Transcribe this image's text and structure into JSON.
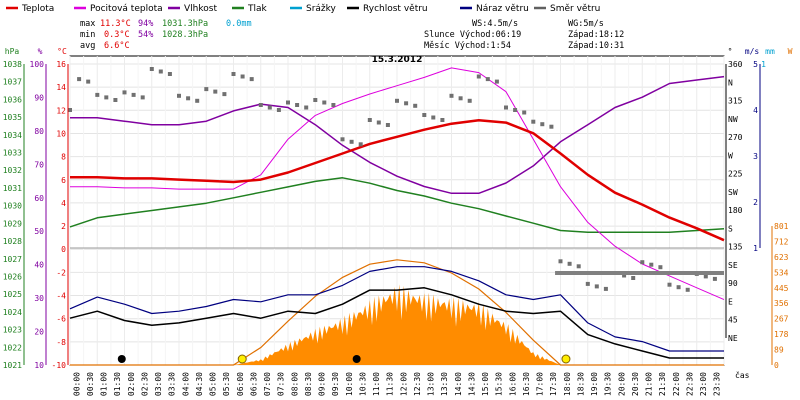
{
  "chart_data": {
    "type": "line",
    "title": "15.3.2012",
    "legend": [
      {
        "name": "Teplota",
        "color": "#e00000"
      },
      {
        "name": "Pocitová teplota",
        "color": "#dd00dd"
      },
      {
        "name": "Vlhkost",
        "color": "#8000a0"
      },
      {
        "name": "Tlak",
        "color": "#208020"
      },
      {
        "name": "Srážky",
        "color": "#00a0d0"
      },
      {
        "name": "Rychlost větru",
        "color": "#000000"
      },
      {
        "name": "Náraz větru",
        "color": "#000080"
      },
      {
        "name": "Směr větru",
        "color": "#606060"
      }
    ],
    "stats": {
      "max_label": "max",
      "min_label": "min",
      "avg_label": "avg",
      "max_temp": "11.3°C",
      "max_hum": "94%",
      "max_press": "1031.3hPa",
      "max_rain": "0.0mm",
      "min_temp": "0.3°C",
      "min_hum": "54%",
      "min_press": "1028.3hPa",
      "avg_temp": "6.6°C",
      "ws": "WS:4.5m/s",
      "wg": "WG:5m/s",
      "sun": "Slunce Východ:06:19",
      "sun_set": "Západ:18:12",
      "moon": "Měsíc  Východ:1:54",
      "moon_set": "Západ:10:31"
    },
    "axes": {
      "hpa": {
        "label": "hPa",
        "ticks": [
          "1038",
          "1037",
          "1036",
          "1035",
          "1034",
          "1033",
          "1032",
          "1031",
          "1030",
          "1029",
          "1028",
          "1027",
          "1026",
          "1025",
          "1024",
          "1023",
          "1022",
          "1021"
        ]
      },
      "pct": {
        "label": "%",
        "ticks": [
          "100",
          "",
          "90",
          "",
          "80",
          "",
          "70",
          "",
          "60",
          "",
          "50",
          "",
          "40",
          "",
          "30",
          "",
          "20",
          "",
          "10"
        ]
      },
      "temp": {
        "label": "°C",
        "ticks": [
          "16",
          "14",
          "12",
          "10",
          "8",
          "6",
          "4",
          "2",
          "0",
          "-2",
          "-4",
          "-6",
          "-8",
          "-10"
        ]
      },
      "dir": {
        "label": "°",
        "ticks": [
          "360",
          "N",
          "315",
          "NW",
          "270",
          "W",
          "225",
          "SW",
          "180",
          "S",
          "135",
          "SE",
          "90",
          "E",
          "45",
          "NE"
        ]
      },
      "ms": {
        "label": "m/s",
        "ticks": [
          "5",
          "4",
          "3",
          "2",
          "1"
        ]
      },
      "mm": {
        "label": "mm",
        "ticks": [
          "1"
        ]
      },
      "w": {
        "label": "W",
        "ticks": [
          "801",
          "712",
          "623",
          "534",
          "445",
          "356",
          "267",
          "178",
          "89",
          "0"
        ]
      },
      "x_label": "čas",
      "x_ticks": [
        "00:00",
        "00:30",
        "01:00",
        "01:30",
        "02:00",
        "02:30",
        "03:00",
        "03:30",
        "04:00",
        "04:30",
        "05:00",
        "05:30",
        "06:00",
        "06:30",
        "07:00",
        "07:30",
        "08:00",
        "08:30",
        "09:00",
        "09:30",
        "10:00",
        "10:30",
        "11:00",
        "11:30",
        "12:00",
        "12:30",
        "13:00",
        "13:30",
        "14:00",
        "14:30",
        "15:00",
        "15:30",
        "16:00",
        "16:30",
        "17:00",
        "17:30",
        "18:00",
        "18:30",
        "19:00",
        "19:30",
        "20:00",
        "20:30",
        "21:00",
        "21:30",
        "22:00",
        "22:30",
        "23:00",
        "23:30"
      ]
    },
    "series_hourly": {
      "hours": [
        0,
        1,
        2,
        3,
        4,
        5,
        6,
        7,
        8,
        9,
        10,
        11,
        12,
        13,
        14,
        15,
        16,
        17,
        18,
        19,
        20,
        21,
        22,
        23,
        24
      ],
      "temperature_c": [
        5.8,
        5.8,
        5.7,
        5.7,
        5.6,
        5.5,
        5.4,
        5.6,
        6.2,
        7.0,
        7.8,
        8.6,
        9.2,
        9.8,
        10.3,
        10.6,
        10.4,
        9.5,
        7.8,
        6.0,
        4.5,
        3.5,
        2.4,
        1.5,
        0.5
      ],
      "felt_temperature_c": [
        5.0,
        5.0,
        4.9,
        4.9,
        4.8,
        4.8,
        4.8,
        6.0,
        9.0,
        11.0,
        12.0,
        12.8,
        13.5,
        14.2,
        15.0,
        14.6,
        13.0,
        9.0,
        5.0,
        2.0,
        0.0,
        -1.5,
        -2.5,
        -3.5,
        -4.5
      ],
      "humidity_pct": [
        82,
        82,
        81,
        80,
        80,
        81,
        84,
        86,
        85,
        80,
        74,
        69,
        65,
        62,
        60,
        60,
        63,
        68,
        75,
        80,
        85,
        88,
        92,
        93,
        94
      ],
      "pressure_hpa": [
        1028.6,
        1029.1,
        1029.3,
        1029.5,
        1029.7,
        1029.9,
        1030.2,
        1030.5,
        1030.8,
        1031.1,
        1031.3,
        1031.0,
        1030.6,
        1030.3,
        1029.9,
        1029.6,
        1029.2,
        1028.8,
        1028.4,
        1028.3,
        1028.3,
        1028.3,
        1028.3,
        1028.4,
        1028.5
      ],
      "wind_speed_ms": [
        2.0,
        2.3,
        1.9,
        1.7,
        1.8,
        2.0,
        2.2,
        2.0,
        2.3,
        2.2,
        2.6,
        3.2,
        3.2,
        3.3,
        3.0,
        2.6,
        2.3,
        2.2,
        2.3,
        1.3,
        0.9,
        0.6,
        0.3,
        0.3,
        0.3
      ],
      "wind_gust_ms": [
        2.4,
        2.9,
        2.6,
        2.2,
        2.3,
        2.5,
        2.8,
        2.7,
        3.0,
        3.0,
        3.4,
        4.0,
        4.2,
        4.2,
        4.0,
        3.6,
        3.0,
        2.8,
        3.0,
        1.8,
        1.2,
        1.0,
        0.6,
        0.6,
        0.6
      ],
      "wind_direction_deg": [
        325,
        330,
        320,
        335,
        330,
        325,
        330,
        320,
        310,
        300,
        280,
        290,
        300,
        310,
        320,
        330,
        320,
        290,
        110,
        110,
        110,
        110,
        110,
        110,
        110
      ],
      "solar_w": [
        0,
        0,
        0,
        0,
        0,
        0,
        0,
        40,
        150,
        250,
        330,
        450,
        560,
        500,
        470,
        440,
        300,
        90,
        0,
        0,
        0,
        0,
        0,
        0,
        0
      ],
      "solar_theoretical_w": [
        0,
        0,
        0,
        0,
        0,
        0,
        0,
        120,
        300,
        470,
        600,
        690,
        720,
        700,
        630,
        520,
        360,
        170,
        0,
        0,
        0,
        0,
        0,
        0,
        0
      ]
    }
  }
}
